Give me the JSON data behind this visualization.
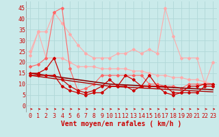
{
  "x": [
    0,
    1,
    2,
    3,
    4,
    5,
    6,
    7,
    8,
    9,
    10,
    11,
    12,
    13,
    14,
    15,
    16,
    17,
    18,
    19,
    20,
    21,
    22,
    23
  ],
  "background_color": "#caeaea",
  "grid_color": "#b0d8d8",
  "xlabel": "Vent moyen/en rafales ( km/h )",
  "xlabel_color": "#cc0000",
  "xlabel_fontsize": 7,
  "tick_color": "#cc0000",
  "tick_fontsize": 6,
  "ylim": [
    -3,
    48
  ],
  "yticks": [
    0,
    5,
    10,
    15,
    20,
    25,
    30,
    35,
    40,
    45
  ],
  "lines": [
    {
      "y": [
        23,
        34,
        34,
        43,
        38,
        33,
        28,
        24,
        22,
        22,
        22,
        24,
        24,
        26,
        24,
        26,
        24,
        45,
        32,
        22,
        22,
        22,
        10,
        20
      ],
      "color": "#ffaaaa",
      "linewidth": 0.8,
      "marker": "D",
      "markersize": 2,
      "zorder": 2
    },
    {
      "y": [
        25,
        34,
        22,
        22,
        22,
        20,
        18,
        18,
        18,
        17,
        17,
        17,
        17,
        16,
        16,
        15,
        14,
        14,
        13,
        13,
        12,
        12,
        11,
        10
      ],
      "color": "#ffaaaa",
      "linewidth": 0.8,
      "marker": "D",
      "markersize": 2,
      "zorder": 2
    },
    {
      "y": [
        18,
        19,
        22,
        43,
        45,
        17,
        7,
        8,
        10,
        14,
        14,
        14,
        14,
        14,
        14,
        10,
        10,
        9,
        9,
        8,
        10,
        10,
        10,
        10
      ],
      "color": "#ff6666",
      "linewidth": 0.8,
      "marker": "D",
      "markersize": 2,
      "zorder": 3
    },
    {
      "y": [
        15,
        15,
        17,
        22,
        12,
        9,
        7,
        6,
        7,
        9,
        12,
        9,
        14,
        12,
        9,
        14,
        9,
        9,
        6,
        6,
        9,
        9,
        10,
        10
      ],
      "color": "#cc0000",
      "linewidth": 0.9,
      "marker": "D",
      "markersize": 2,
      "zorder": 4
    },
    {
      "y": [
        14,
        14,
        14,
        14,
        9,
        7,
        6,
        5,
        6,
        6,
        9,
        9,
        9,
        7,
        9,
        9,
        9,
        6,
        5,
        6,
        6,
        6,
        9,
        9
      ],
      "color": "#cc0000",
      "linewidth": 0.9,
      "marker": "D",
      "markersize": 2,
      "zorder": 4
    },
    {
      "y": [
        15.0,
        14.5,
        14.0,
        13.5,
        13.0,
        12.5,
        12.0,
        11.5,
        11.0,
        10.5,
        10.0,
        9.8,
        9.6,
        9.4,
        9.2,
        9.0,
        8.8,
        8.6,
        8.4,
        8.2,
        8.0,
        7.8,
        7.6,
        7.4
      ],
      "color": "#880000",
      "linewidth": 1.2,
      "marker": null,
      "markersize": 0,
      "zorder": 3
    },
    {
      "y": [
        14.0,
        13.5,
        13.0,
        12.5,
        12.0,
        11.5,
        11.0,
        10.5,
        10.0,
        9.5,
        9.0,
        8.8,
        8.6,
        8.4,
        8.2,
        8.0,
        7.8,
        7.6,
        7.4,
        7.2,
        7.0,
        6.8,
        6.6,
        6.4
      ],
      "color": "#aa0000",
      "linewidth": 1.0,
      "marker": null,
      "markersize": 0,
      "zorder": 3
    }
  ],
  "arrow_color": "#cc0000"
}
